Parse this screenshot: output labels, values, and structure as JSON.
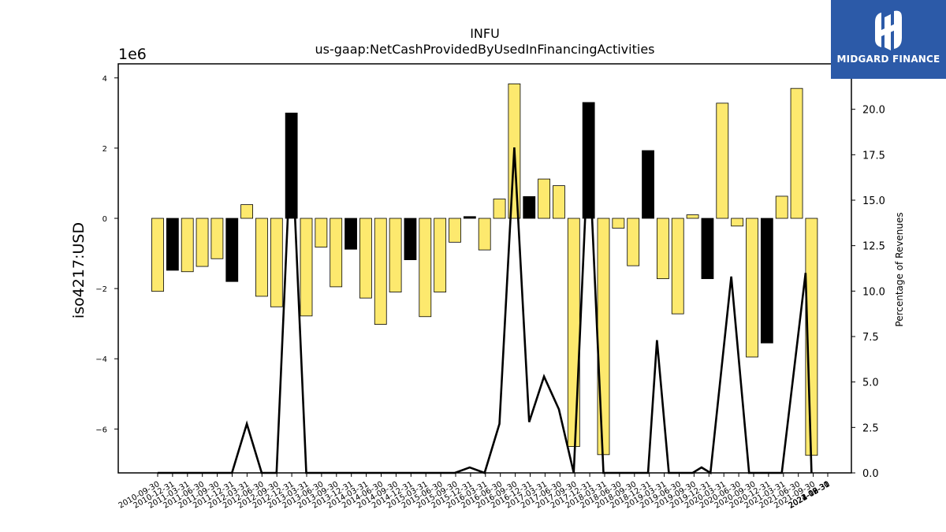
{
  "brand": {
    "name": "MIDGARD FINANCE",
    "bg_color": "#2c5aa8"
  },
  "chart_data": {
    "type": "bar",
    "title": "INFU",
    "subtitle": "us-gaap:NetCashProvidedByUsedInFinancingActivities",
    "ylabel": "iso4217:USD",
    "y2label": "Percentage of Revenues",
    "y_offset_label": "1e6",
    "ylim": [
      -7.25,
      4.4
    ],
    "y2lim": [
      0,
      22.5
    ],
    "yticks": [
      -6,
      -4,
      -2,
      0,
      2,
      4
    ],
    "y2ticks": [
      0.0,
      2.5,
      5.0,
      7.5,
      10.0,
      12.5,
      15.0,
      17.5,
      20.0
    ],
    "colors": {
      "positive_growth": "#fde96e",
      "highlight": "#000000",
      "line": "#000000"
    },
    "categories": [
      "2010-09-30",
      "2010-12-31",
      "2011-03-31",
      "2011-06-30",
      "2011-09-30",
      "2011-12-31",
      "2012-03-31",
      "2012-06-30",
      "2012-09-30",
      "2012-12-31",
      "2013-03-31",
      "2013-06-30",
      "2013-09-30",
      "2013-12-31",
      "2014-03-31",
      "2014-06-30",
      "2014-09-30",
      "2014-12-31",
      "2015-03-31",
      "2015-06-30",
      "2015-09-30",
      "2015-12-31",
      "2016-03-31",
      "2016-06-30",
      "2016-09-30",
      "2016-12-31",
      "2017-03-31",
      "2017-06-30",
      "2017-09-30",
      "2017-12-31",
      "2018-03-31",
      "2018-06-30",
      "2018-09-30",
      "2018-12-31",
      "2019-03-31",
      "2019-06-30",
      "2019-09-30",
      "2019-12-31",
      "2020-03-31",
      "2020-06-30",
      "2020-09-30",
      "2020-12-31",
      "2021-03-31",
      "2021-06-30",
      "2021-09-30",
      "2021-12-31",
      "2022-03-31",
      "2022-06-30",
      "2022-09-30",
      "2022-12-31",
      "2023-03-31",
      "2023-06-30",
      "2023-09-30",
      "2023-12-31",
      "2024-03-31",
      "2024-06-30",
      "2024-09-30"
    ],
    "xtick_labels": [
      "2010-09-30",
      "2010-12-31",
      "2011-03-31",
      "2011-06-30",
      "2011-09-30",
      "2011-12-31",
      "2012-03-31",
      "2012-06-30",
      "2012-09-30",
      "2012-12-31",
      "2013-03-31",
      "2013-06-30",
      "2013-09-30",
      "2013-12-31",
      "2014-03-31",
      "2014-06-30",
      "2014-09-30",
      "2014-12-31",
      "2015-03-31",
      "2015-06-30",
      "2015-09-30",
      "2015-12-31",
      "2016-03-31",
      "2016-06-30",
      "2016-09-30",
      "2016-12-31",
      "2017-03-31",
      "2017-06-30",
      "2017-09-30",
      "2017-12-31",
      "2018-03-31",
      "2018-06-30",
      "2018-09-30",
      "2018-12-31",
      "2019-03-31",
      "2019-06-30",
      "2019-09-30",
      "2019-12-31",
      "2020-03-31",
      "2020-06-30",
      "2020-09-30",
      "2020-12-31",
      "2021-03-31",
      "2021-06-30",
      "2021-09-30",
      "2021-12-31",
      "2022-03-31",
      "2022-06-30",
      "2022-09-30",
      "2022-12-31",
      "2023-03-31",
      "2023-06-30",
      "2023-09-30",
      "2023-12-31",
      "2024-03-31",
      "2024-06-30",
      "2024-09-30"
    ],
    "bars": [
      {
        "label": "2010-09-30",
        "value": -2.08,
        "color": "yellow"
      },
      {
        "label": "2010-12-31",
        "value": -1.48,
        "color": "black"
      },
      {
        "label": "2011-03-31",
        "value": -1.52,
        "color": "yellow"
      },
      {
        "label": "2011-06-30",
        "value": -1.37,
        "color": "yellow"
      },
      {
        "label": "2011-09-30",
        "value": -1.15,
        "color": "yellow"
      },
      {
        "label": "2011-12-31",
        "value": -1.8,
        "color": "black"
      },
      {
        "label": "2012-03-31",
        "value": 0.39,
        "color": "yellow"
      },
      {
        "label": "2012-06-30",
        "value": -2.22,
        "color": "yellow"
      },
      {
        "label": "2012-09-30",
        "value": -2.52,
        "color": "yellow"
      },
      {
        "label": "2012-12-31",
        "value": 3.0,
        "color": "black"
      },
      {
        "label": "2013-03-31",
        "value": -2.78,
        "color": "yellow"
      },
      {
        "label": "2013-06-30",
        "value": -0.82,
        "color": "yellow"
      },
      {
        "label": "2013-09-30",
        "value": -1.95,
        "color": "yellow"
      },
      {
        "label": "2013-12-31",
        "value": -0.88,
        "color": "black"
      },
      {
        "label": "2014-03-31",
        "value": -2.27,
        "color": "yellow"
      },
      {
        "label": "2014-06-30",
        "value": -3.02,
        "color": "yellow"
      },
      {
        "label": "2014-09-30",
        "value": -2.1,
        "color": "yellow"
      },
      {
        "label": "2014-12-31",
        "value": -1.18,
        "color": "black"
      },
      {
        "label": "2015-03-31",
        "value": -2.8,
        "color": "yellow"
      },
      {
        "label": "2015-06-30",
        "value": -2.1,
        "color": "yellow"
      },
      {
        "label": "2015-09-30",
        "value": -0.68,
        "color": "yellow"
      },
      {
        "label": "2015-12-31",
        "value": 0.05,
        "color": "black"
      },
      {
        "label": "2016-03-31",
        "value": -0.9,
        "color": "yellow"
      },
      {
        "label": "2016-06-30",
        "value": 0.55,
        "color": "yellow"
      },
      {
        "label": "2016-09-30",
        "value": 3.83,
        "color": "yellow"
      },
      {
        "label": "2016-12-31",
        "value": 0.62,
        "color": "black"
      },
      {
        "label": "2017-03-31",
        "value": 1.12,
        "color": "yellow"
      },
      {
        "label": "2017-06-30",
        "value": 0.93,
        "color": "yellow"
      },
      {
        "label": "2017-09-30",
        "value": -6.5,
        "color": "yellow"
      },
      {
        "label": "2017-12-31",
        "value": 3.3,
        "color": "black"
      },
      {
        "label": "2018-03-31",
        "value": -6.73,
        "color": "yellow"
      },
      {
        "label": "2018-06-30",
        "value": -0.28,
        "color": "yellow"
      },
      {
        "label": "2018-09-30",
        "value": -1.35,
        "color": "yellow"
      },
      {
        "label": "2018-12-31",
        "value": 1.93,
        "color": "black"
      },
      {
        "label": "2019-03-31",
        "value": -1.72,
        "color": "yellow"
      },
      {
        "label": "2019-06-30",
        "value": -2.72,
        "color": "yellow"
      },
      {
        "label": "2019-09-30",
        "value": 0.1,
        "color": "yellow"
      },
      {
        "label": "2019-12-31",
        "value": -1.72,
        "color": "black"
      },
      {
        "label": "2020-03-31",
        "value": 3.28,
        "color": "yellow"
      },
      {
        "label": "2020-06-30",
        "value": -0.22,
        "color": "yellow"
      },
      {
        "label": "2020-09-30",
        "value": -3.95,
        "color": "yellow"
      },
      {
        "label": "2020-12-31",
        "value": -3.55,
        "color": "black"
      },
      {
        "label": "2021-03-31",
        "value": 0.63,
        "color": "yellow"
      },
      {
        "label": "2021-06-30",
        "value": 3.7,
        "color": "yellow"
      },
      {
        "label": "2021-09-30",
        "value": -6.75,
        "color": "yellow"
      }
    ],
    "line_series": {
      "points": [
        {
          "i": 0,
          "v": 0
        },
        {
          "i": 5,
          "v": 0
        },
        {
          "i": 6,
          "v": 2.7
        },
        {
          "i": 7,
          "v": 0
        },
        {
          "i": 8,
          "v": 0
        },
        {
          "i": 9,
          "v": 18.6
        },
        {
          "i": 10,
          "v": 0
        },
        {
          "i": 20,
          "v": 0
        },
        {
          "i": 21,
          "v": 0.3
        },
        {
          "i": 22,
          "v": 0
        },
        {
          "i": 23,
          "v": 2.7
        },
        {
          "i": 24,
          "v": 17.9
        },
        {
          "i": 25,
          "v": 2.8
        },
        {
          "i": 26,
          "v": 5.3
        },
        {
          "i": 27,
          "v": 3.5
        },
        {
          "i": 28,
          "v": 0
        },
        {
          "i": 29,
          "v": 18.3
        },
        {
          "i": 30,
          "v": 0
        },
        {
          "i": 33,
          "v": 0
        },
        {
          "i": 33.6,
          "v": 7.3
        },
        {
          "i": 34.4,
          "v": 0
        },
        {
          "i": 36,
          "v": 0
        },
        {
          "i": 36.6,
          "v": 0.3
        },
        {
          "i": 37.2,
          "v": 0
        },
        {
          "i": 38.6,
          "v": 10.8
        },
        {
          "i": 39.8,
          "v": 0
        },
        {
          "i": 42,
          "v": 0
        },
        {
          "i": 43.6,
          "v": 11.0
        },
        {
          "i": 44,
          "v": 0
        }
      ]
    }
  }
}
